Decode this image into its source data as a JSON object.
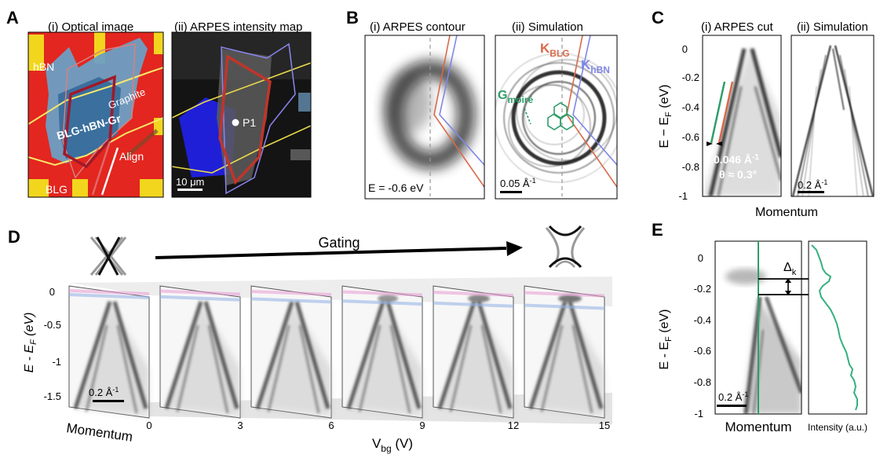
{
  "panels": {
    "A": {
      "letter": "A",
      "sub_i": "(i) Optical image",
      "sub_ii": "(ii) ARPES intensity map",
      "labels": {
        "hbn": "hBN",
        "graphite": "Graphite",
        "stack": "BLG-hBN-Gr",
        "align": "Align",
        "blg": "BLG",
        "p1": "P1",
        "scale": "10 μm"
      }
    },
    "B": {
      "letter": "B",
      "sub_i": "(i) ARPES contour",
      "sub_ii": "(ii) Simulation",
      "energy": "E = -0.6 eV",
      "k_blg": "K",
      "k_blg_sub": "BLG",
      "k_hbn": "K",
      "k_hbn_sub": "hBN",
      "g_moire": "G",
      "g_moire_sub": "moiré",
      "scale": "0.05 Å",
      "scale_exp": "-1"
    },
    "C": {
      "letter": "C",
      "sub_i": "(i) ARPES cut",
      "sub_ii": "(ii) Simulation",
      "ylabel": "E − E",
      "ylabel_sub": "F",
      "ylabel_unit": " (eV)",
      "yticks": [
        "0",
        "-0.2",
        "-0.4",
        "-0.6",
        "-0.8",
        "-1"
      ],
      "xlabel": "Momentum",
      "ann_k": "0.046 Å",
      "ann_k_exp": "-1",
      "ann_theta": "θ ≈ 0.3°",
      "scale": "0.2 Å",
      "scale_exp": "-1"
    },
    "D": {
      "letter": "D",
      "gating": "Gating",
      "ylabel": "E - E",
      "ylabel_sub": "F",
      "ylabel_unit": " (eV)",
      "yticks": [
        "0",
        "-0.5",
        "-1",
        "-1.5"
      ],
      "xlabel": "Momentum",
      "vbg_label": "V",
      "vbg_sub": "bg",
      "vbg_unit": " (V)",
      "vbg_ticks": [
        "0",
        "3",
        "6",
        "9",
        "12",
        "15"
      ],
      "scale": "0.2 Å",
      "scale_exp": "-1"
    },
    "E": {
      "letter": "E",
      "ylabel": "E - E",
      "ylabel_sub": "F",
      "ylabel_unit": " (eV)",
      "yticks": [
        "0",
        "-0.2",
        "-0.4",
        "-0.6",
        "-0.8",
        "-1"
      ],
      "xlabel": "Momentum",
      "intensity_label": "Intensity (a.u.)",
      "delta": "Δ",
      "delta_sub": "k",
      "scale": "0.2 Å",
      "scale_exp": "-1"
    }
  },
  "colors": {
    "blg_line": "#d9694a",
    "hbn_line": "#7f86e6",
    "moire": "#2e9e6a",
    "optical_bg": "#e3261f",
    "gold": "#f2d61e",
    "flake": "#4f86b4",
    "graphite": "#e8e27a"
  }
}
